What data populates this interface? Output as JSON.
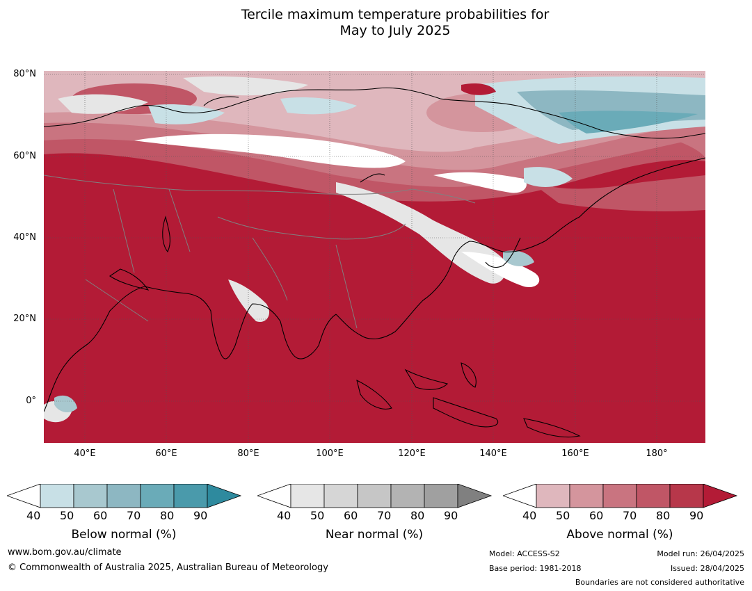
{
  "title": {
    "line1": "Tercile maximum temperature probabilities for",
    "line2": "May to July 2025"
  },
  "map": {
    "lat_labels": [
      "80°N",
      "60°N",
      "40°N",
      "20°N",
      "0°"
    ],
    "lon_labels": [
      "40°E",
      "60°E",
      "80°E",
      "100°E",
      "120°E",
      "140°E",
      "160°E",
      "180°"
    ],
    "ocean_color": "#b31b36",
    "land_outline_color": "#000000",
    "border_color": "#808080"
  },
  "colorbars": [
    {
      "name": "below",
      "title": "Below normal (%)",
      "ticks": [
        "40",
        "50",
        "60",
        "70",
        "80",
        "90"
      ],
      "colors": [
        "#c8e0e6",
        "#a8c8cf",
        "#8db7c2",
        "#6aabb8",
        "#4a9aab",
        "#2e8a9e"
      ]
    },
    {
      "name": "near",
      "title": "Near normal (%)",
      "ticks": [
        "40",
        "50",
        "60",
        "70",
        "80",
        "90"
      ],
      "colors": [
        "#e6e6e6",
        "#d6d6d6",
        "#c6c6c6",
        "#b3b3b3",
        "#a0a0a0",
        "#808080"
      ]
    },
    {
      "name": "above",
      "title": "Above normal (%)",
      "ticks": [
        "40",
        "50",
        "60",
        "70",
        "80",
        "90"
      ],
      "colors": [
        "#dfb7bd",
        "#d4959d",
        "#c97480",
        "#c05666",
        "#b7374a",
        "#b31b36"
      ]
    }
  ],
  "footer": {
    "website": "www.bom.gov.au/climate",
    "copyright": "© Commonwealth of Australia 2025, Australian Bureau of Meteorology",
    "model": "Model: ACCESS-S2",
    "base_period": "Base period: 1981-2018",
    "model_run": "Model run: 26/04/2025",
    "issued": "Issued: 28/04/2025",
    "disclaimer": "Boundaries are not considered authoritative"
  }
}
